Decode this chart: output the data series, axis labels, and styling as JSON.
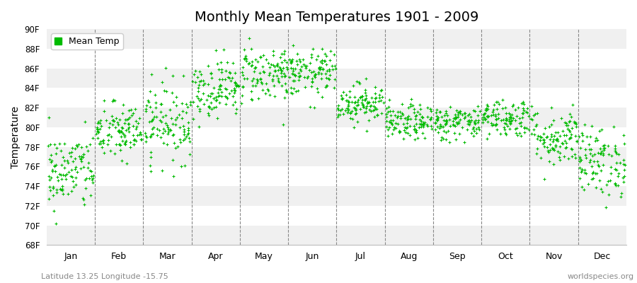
{
  "title": "Monthly Mean Temperatures 1901 - 2009",
  "ylabel": "Temperature",
  "xlabel": "",
  "subtitle": "Latitude 13.25 Longitude -15.75",
  "watermark": "worldspecies.org",
  "legend_label": "Mean Temp",
  "dot_color": "#00bb00",
  "background_color": "#ffffff",
  "plot_bg_color": "#ffffff",
  "band_colors": [
    "#f0f0f0",
    "#ffffff"
  ],
  "grid_color": "#aaaaaa",
  "ylim": [
    68,
    90
  ],
  "yticks": [
    68,
    70,
    72,
    74,
    76,
    78,
    80,
    82,
    84,
    86,
    88,
    90
  ],
  "months": [
    "Jan",
    "Feb",
    "Mar",
    "Apr",
    "May",
    "Jun",
    "Jul",
    "Aug",
    "Sep",
    "Oct",
    "Nov",
    "Dec"
  ],
  "month_means": [
    75.5,
    79.5,
    80.5,
    84.0,
    85.5,
    85.5,
    82.5,
    80.5,
    80.5,
    81.0,
    79.0,
    76.5
  ],
  "month_stds": [
    2.0,
    1.5,
    2.0,
    1.5,
    1.5,
    1.2,
    1.0,
    0.9,
    0.9,
    1.0,
    1.5,
    1.8
  ],
  "n_years": 109,
  "seed": 42
}
